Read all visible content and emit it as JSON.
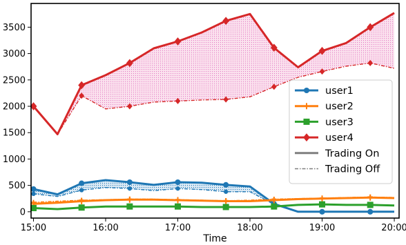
{
  "chart_data": {
    "type": "line",
    "title": "",
    "xlabel": "Time",
    "ylabel": "",
    "x_ticks": [
      "15:00",
      "16:00",
      "17:00",
      "18:00",
      "19:00",
      "20:00"
    ],
    "y_ticks": [
      0,
      500,
      1000,
      1500,
      2000,
      2500,
      3000,
      3500
    ],
    "xlim": [
      "14:58",
      "20:04"
    ],
    "ylim": [
      -120,
      3950
    ],
    "legend_position": "lower-right",
    "grid": false,
    "shade_between_on_off": true,
    "x": [
      "15:00",
      "15:20",
      "15:40",
      "16:00",
      "16:20",
      "16:40",
      "17:00",
      "17:20",
      "17:40",
      "18:00",
      "18:20",
      "18:40",
      "19:00",
      "19:20",
      "19:40",
      "20:00"
    ],
    "series": [
      {
        "name": "user1",
        "color": "#1f77b4",
        "marker": "circle",
        "on": [
          430,
          330,
          540,
          600,
          560,
          510,
          560,
          550,
          510,
          480,
          150,
          0,
          0,
          0,
          0,
          0
        ],
        "off": [
          340,
          290,
          410,
          460,
          440,
          400,
          440,
          420,
          380,
          380,
          140,
          0,
          0,
          0,
          0,
          0
        ]
      },
      {
        "name": "user2",
        "color": "#ff7f0e",
        "marker": "plus",
        "on": [
          150,
          170,
          200,
          220,
          230,
          230,
          220,
          210,
          200,
          200,
          220,
          240,
          250,
          260,
          270,
          260
        ],
        "off": [
          180,
          200,
          220,
          230,
          240,
          240,
          230,
          220,
          210,
          220,
          240,
          250,
          260,
          270,
          280,
          270
        ]
      },
      {
        "name": "user3",
        "color": "#2ca02c",
        "marker": "square",
        "on": [
          70,
          50,
          80,
          100,
          100,
          100,
          100,
          90,
          90,
          90,
          100,
          130,
          140,
          130,
          130,
          120
        ],
        "off": [
          70,
          50,
          80,
          100,
          100,
          100,
          100,
          90,
          90,
          90,
          100,
          130,
          140,
          130,
          130,
          120
        ]
      },
      {
        "name": "user4",
        "color": "#d62728",
        "marker": "diamond",
        "on": [
          2000,
          1470,
          2400,
          2590,
          2820,
          3100,
          3230,
          3400,
          3620,
          3750,
          3110,
          2740,
          3050,
          3200,
          3500,
          3770
        ],
        "off": [
          2000,
          1470,
          2200,
          1950,
          2000,
          2080,
          2100,
          2120,
          2130,
          2180,
          2370,
          2550,
          2660,
          2760,
          2820,
          2720
        ]
      }
    ],
    "legend_extra": [
      {
        "name": "Trading On",
        "style": "solid"
      },
      {
        "name": "Trading Off",
        "style": "dashdot"
      }
    ]
  }
}
